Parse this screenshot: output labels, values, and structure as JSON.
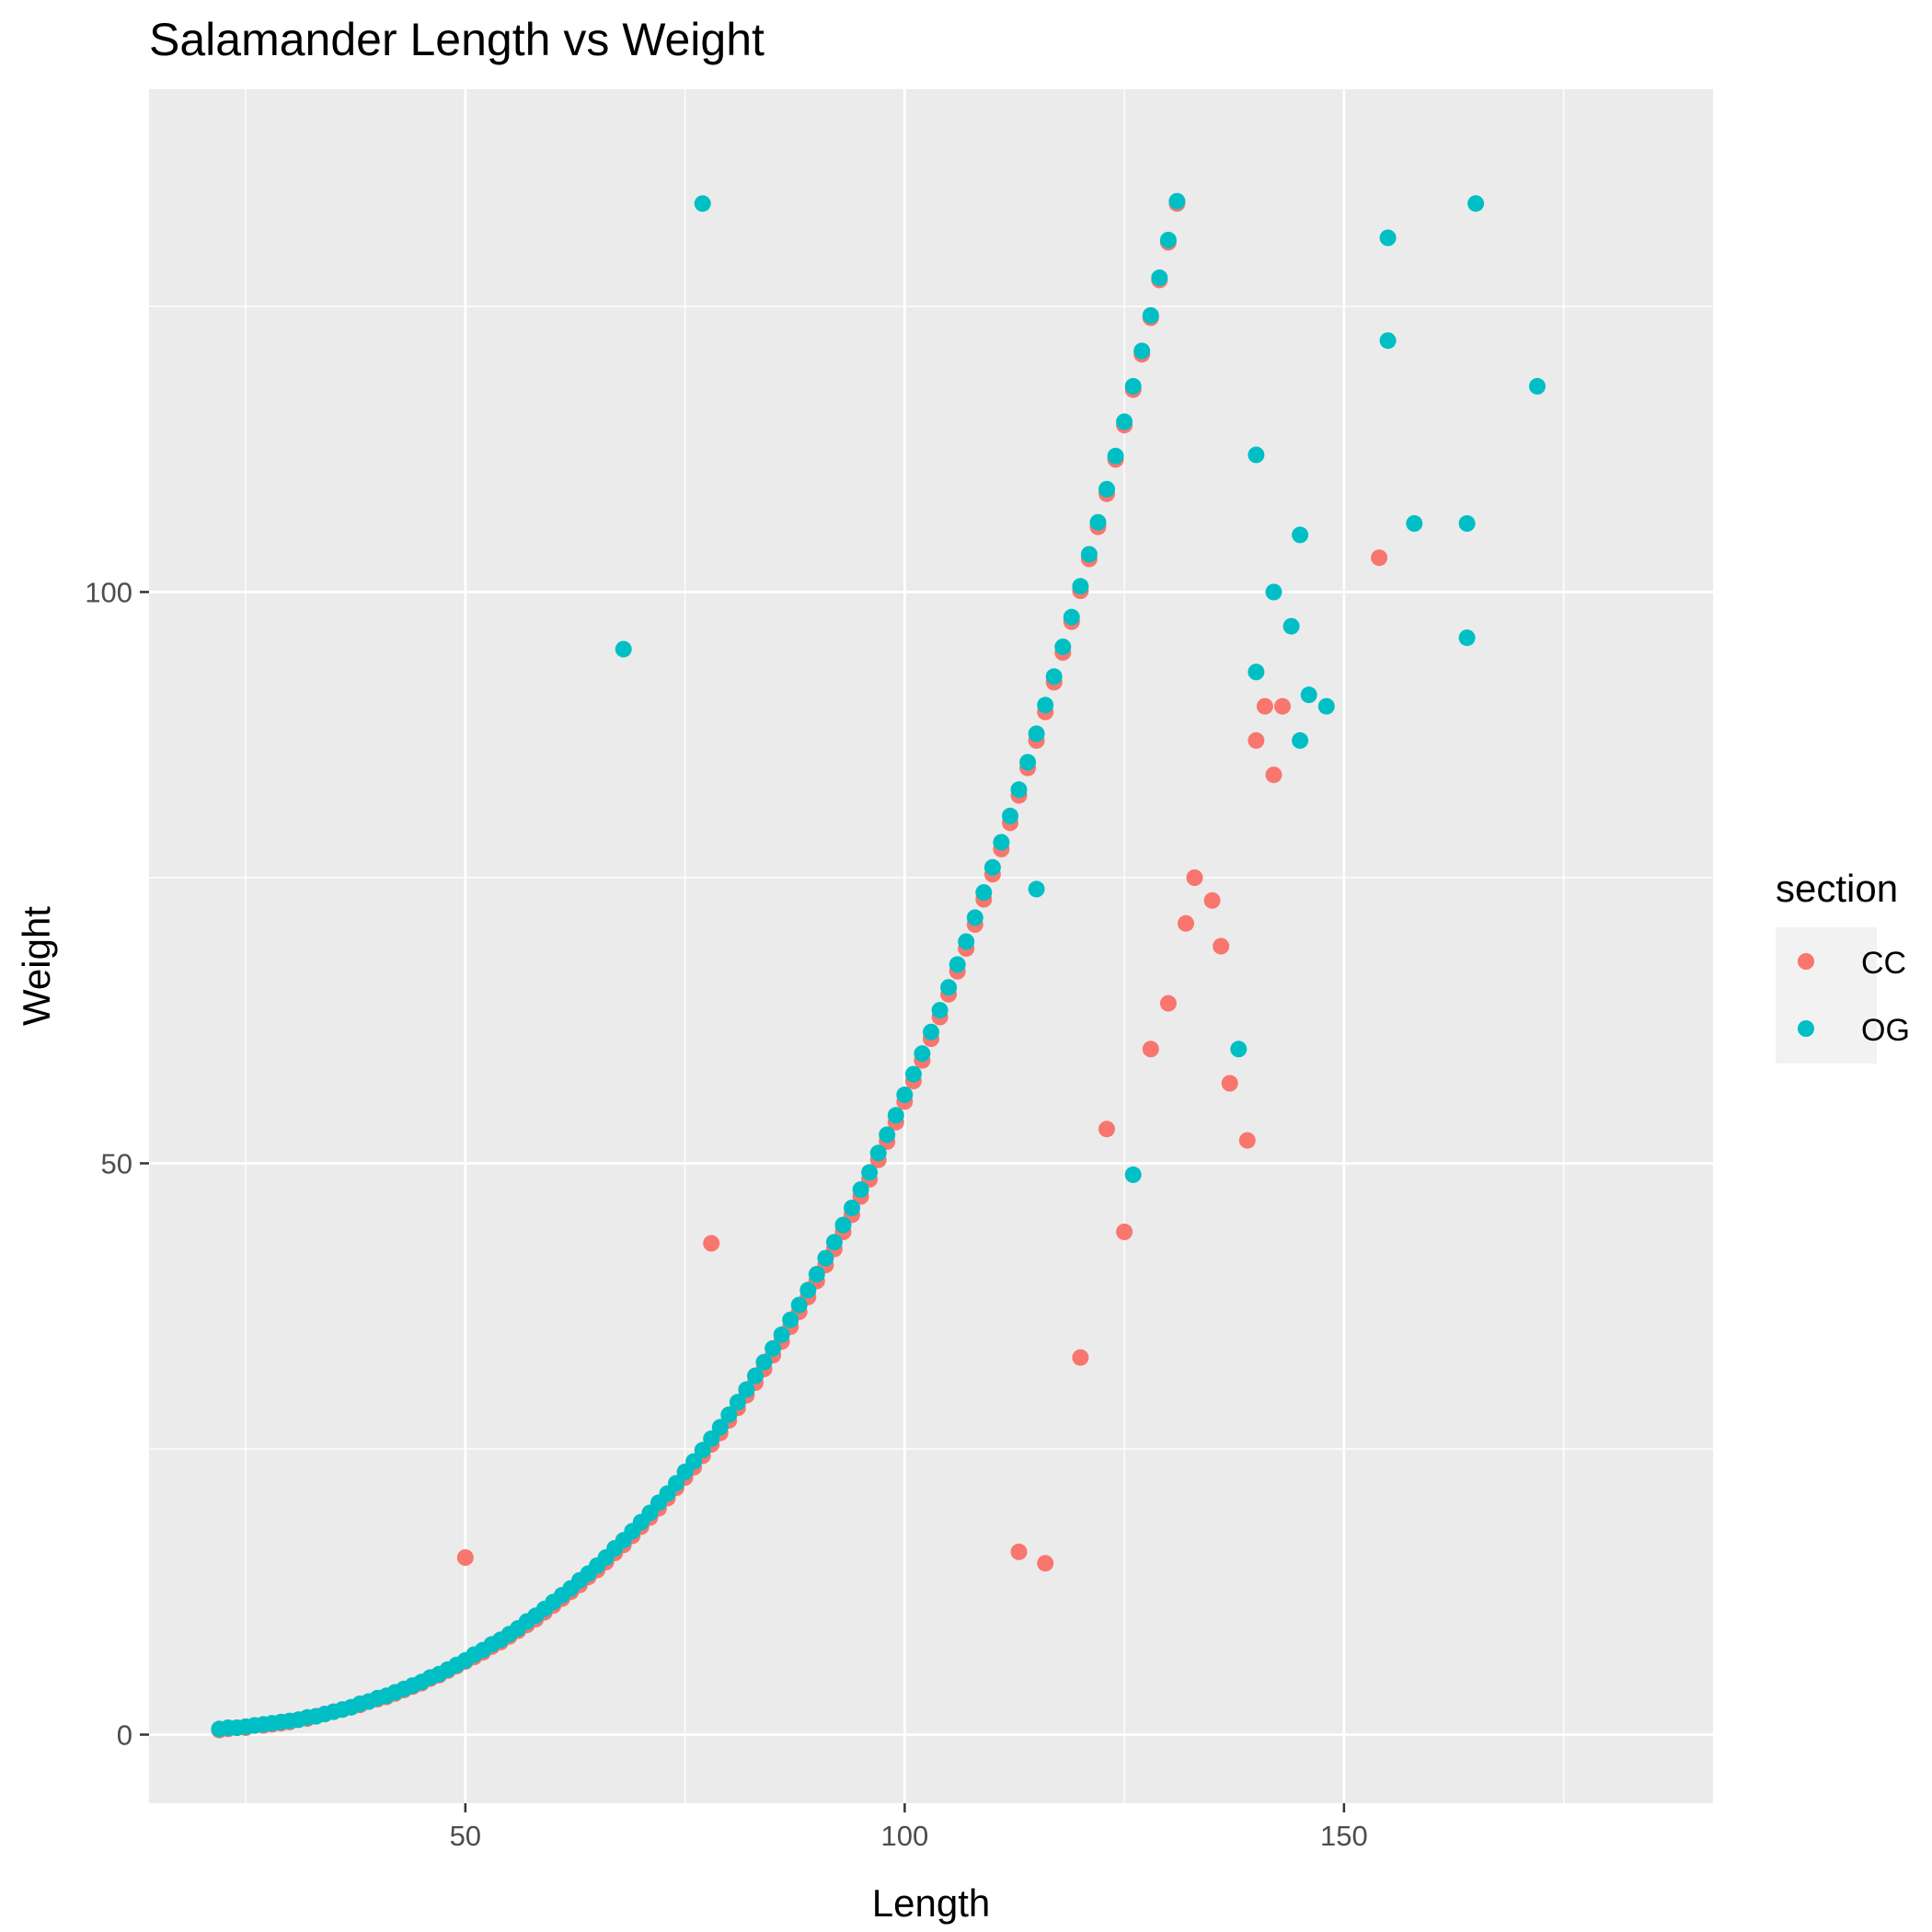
{
  "chart_data": {
    "type": "scatter",
    "title": "Salamander Length vs Weight",
    "xlabel": "Length",
    "ylabel": "Weight",
    "xlim": [
      14,
      192
    ],
    "ylim": [
      -6,
      144
    ],
    "x_ticks": [
      50,
      100,
      150
    ],
    "x_tick_labels": [
      "50",
      "100",
      "150"
    ],
    "y_ticks": [
      0,
      50,
      100
    ],
    "y_tick_labels": [
      "0",
      "50",
      "100"
    ],
    "grid": true,
    "legend": {
      "title": "section",
      "position": "right"
    },
    "series": [
      {
        "name": "CC",
        "color": "#F8766D",
        "points": [
          [
            22,
            0.4
          ],
          [
            23,
            0.5
          ],
          [
            24,
            0.6
          ],
          [
            25,
            0.6
          ],
          [
            26,
            0.8
          ],
          [
            27,
            0.8
          ],
          [
            28,
            0.9
          ],
          [
            29,
            1.0
          ],
          [
            30,
            1.1
          ],
          [
            31,
            1.3
          ],
          [
            32,
            1.4
          ],
          [
            33,
            1.6
          ],
          [
            34,
            1.8
          ],
          [
            35,
            2.0
          ],
          [
            36,
            2.2
          ],
          [
            37,
            2.4
          ],
          [
            38,
            2.6
          ],
          [
            39,
            2.9
          ],
          [
            40,
            3.1
          ],
          [
            41,
            3.3
          ],
          [
            42,
            3.6
          ],
          [
            43,
            3.9
          ],
          [
            44,
            4.2
          ],
          [
            45,
            4.5
          ],
          [
            46,
            4.9
          ],
          [
            47,
            5.2
          ],
          [
            48,
            5.6
          ],
          [
            49,
            6.0
          ],
          [
            50,
            6.4
          ],
          [
            51,
            6.8
          ],
          [
            52,
            7.2
          ],
          [
            53,
            7.7
          ],
          [
            54,
            8.1
          ],
          [
            55,
            8.6
          ],
          [
            56,
            9.1
          ],
          [
            57,
            9.6
          ],
          [
            58,
            10.1
          ],
          [
            59,
            10.7
          ],
          [
            60,
            11.3
          ],
          [
            61,
            11.9
          ],
          [
            62,
            12.5
          ],
          [
            63,
            13.1
          ],
          [
            64,
            13.8
          ],
          [
            65,
            14.4
          ],
          [
            66,
            15.1
          ],
          [
            67,
            15.9
          ],
          [
            68,
            16.6
          ],
          [
            69,
            17.4
          ],
          [
            70,
            18.2
          ],
          [
            71,
            19.0
          ],
          [
            72,
            19.8
          ],
          [
            73,
            20.7
          ],
          [
            74,
            21.6
          ],
          [
            75,
            22.5
          ],
          [
            76,
            23.4
          ],
          [
            77,
            24.4
          ],
          [
            78,
            25.4
          ],
          [
            79,
            26.4
          ],
          [
            80,
            27.5
          ],
          [
            81,
            28.6
          ],
          [
            82,
            29.7
          ],
          [
            83,
            30.8
          ],
          [
            84,
            32.0
          ],
          [
            85,
            33.2
          ],
          [
            86,
            34.4
          ],
          [
            87,
            35.7
          ],
          [
            88,
            37.0
          ],
          [
            89,
            38.3
          ],
          [
            90,
            39.7
          ],
          [
            91,
            41.1
          ],
          [
            92,
            42.5
          ],
          [
            93,
            44.0
          ],
          [
            94,
            45.5
          ],
          [
            95,
            47.1
          ],
          [
            96,
            48.6
          ],
          [
            97,
            50.3
          ],
          [
            98,
            51.9
          ],
          [
            99,
            53.6
          ],
          [
            100,
            55.4
          ],
          [
            101,
            57.2
          ],
          [
            102,
            59.0
          ],
          [
            103,
            60.9
          ],
          [
            104,
            62.8
          ],
          [
            105,
            64.8
          ],
          [
            106,
            66.8
          ],
          [
            107,
            68.8
          ],
          [
            108,
            70.9
          ],
          [
            109,
            73.1
          ],
          [
            110,
            75.3
          ],
          [
            111,
            77.5
          ],
          [
            112,
            79.8
          ],
          [
            113,
            82.2
          ],
          [
            114,
            84.6
          ],
          [
            115,
            87.0
          ],
          [
            116,
            89.5
          ],
          [
            117,
            92.1
          ],
          [
            118,
            94.7
          ],
          [
            119,
            97.4
          ],
          [
            120,
            100.1
          ],
          [
            121,
            102.9
          ],
          [
            122,
            105.7
          ],
          [
            123,
            108.6
          ],
          [
            124,
            111.6
          ],
          [
            125,
            114.6
          ],
          [
            126,
            117.7
          ],
          [
            127,
            120.8
          ],
          [
            128,
            124.0
          ],
          [
            129,
            127.3
          ],
          [
            130,
            130.6
          ],
          [
            131,
            134.0
          ],
          [
            50,
            15.5
          ],
          [
            78,
            43
          ],
          [
            113,
            16
          ],
          [
            116,
            15
          ],
          [
            123,
            53
          ],
          [
            125,
            44
          ],
          [
            120,
            33
          ],
          [
            141,
            90
          ],
          [
            143,
            90
          ],
          [
            154,
            103
          ],
          [
            140,
            87
          ],
          [
            142,
            84
          ],
          [
            139,
            52
          ],
          [
            137,
            57
          ],
          [
            135,
            73
          ],
          [
            133,
            75
          ],
          [
            136,
            69
          ],
          [
            132,
            71
          ],
          [
            130,
            64
          ],
          [
            128,
            60
          ]
        ]
      },
      {
        "name": "OG",
        "color": "#00BFC4",
        "points": [
          [
            22,
            0.5
          ],
          [
            23,
            0.6
          ],
          [
            24,
            0.6
          ],
          [
            25,
            0.7
          ],
          [
            26,
            0.8
          ],
          [
            27,
            0.9
          ],
          [
            28,
            1.0
          ],
          [
            29,
            1.1
          ],
          [
            30,
            1.2
          ],
          [
            31,
            1.3
          ],
          [
            32,
            1.5
          ],
          [
            33,
            1.6
          ],
          [
            34,
            1.8
          ],
          [
            35,
            2.0
          ],
          [
            36,
            2.2
          ],
          [
            37,
            2.4
          ],
          [
            38,
            2.7
          ],
          [
            39,
            2.9
          ],
          [
            40,
            3.2
          ],
          [
            41,
            3.4
          ],
          [
            42,
            3.7
          ],
          [
            43,
            4.0
          ],
          [
            44,
            4.3
          ],
          [
            45,
            4.6
          ],
          [
            46,
            5.0
          ],
          [
            47,
            5.3
          ],
          [
            48,
            5.7
          ],
          [
            49,
            6.1
          ],
          [
            50,
            6.5
          ],
          [
            51,
            7.0
          ],
          [
            52,
            7.4
          ],
          [
            53,
            7.9
          ],
          [
            54,
            8.3
          ],
          [
            55,
            8.8
          ],
          [
            56,
            9.3
          ],
          [
            57,
            9.9
          ],
          [
            58,
            10.4
          ],
          [
            59,
            11.0
          ],
          [
            60,
            11.6
          ],
          [
            61,
            12.2
          ],
          [
            62,
            12.8
          ],
          [
            63,
            13.5
          ],
          [
            64,
            14.1
          ],
          [
            65,
            14.8
          ],
          [
            66,
            15.5
          ],
          [
            67,
            16.3
          ],
          [
            68,
            17.0
          ],
          [
            69,
            17.8
          ],
          [
            70,
            18.6
          ],
          [
            71,
            19.4
          ],
          [
            72,
            20.3
          ],
          [
            73,
            21.1
          ],
          [
            74,
            22.0
          ],
          [
            75,
            23.0
          ],
          [
            76,
            23.9
          ],
          [
            77,
            24.9
          ],
          [
            78,
            25.9
          ],
          [
            79,
            26.9
          ],
          [
            80,
            28.0
          ],
          [
            81,
            29.1
          ],
          [
            82,
            30.2
          ],
          [
            83,
            31.4
          ],
          [
            84,
            32.6
          ],
          [
            85,
            33.8
          ],
          [
            86,
            35.0
          ],
          [
            87,
            36.3
          ],
          [
            88,
            37.6
          ],
          [
            89,
            38.9
          ],
          [
            90,
            40.3
          ],
          [
            91,
            41.7
          ],
          [
            92,
            43.1
          ],
          [
            93,
            44.6
          ],
          [
            94,
            46.1
          ],
          [
            95,
            47.7
          ],
          [
            96,
            49.2
          ],
          [
            97,
            50.9
          ],
          [
            98,
            52.5
          ],
          [
            99,
            54.2
          ],
          [
            100,
            56.0
          ],
          [
            101,
            57.8
          ],
          [
            102,
            59.6
          ],
          [
            103,
            61.5
          ],
          [
            104,
            63.4
          ],
          [
            105,
            65.4
          ],
          [
            106,
            67.4
          ],
          [
            107,
            69.4
          ],
          [
            108,
            71.5
          ],
          [
            109,
            73.7
          ],
          [
            110,
            75.9
          ],
          [
            111,
            78.1
          ],
          [
            112,
            80.4
          ],
          [
            113,
            82.7
          ],
          [
            114,
            85.1
          ],
          [
            115,
            87.6
          ],
          [
            116,
            90.1
          ],
          [
            117,
            92.6
          ],
          [
            118,
            95.2
          ],
          [
            119,
            97.8
          ],
          [
            120,
            100.5
          ],
          [
            121,
            103.3
          ],
          [
            122,
            106.1
          ],
          [
            123,
            109.0
          ],
          [
            124,
            111.9
          ],
          [
            125,
            114.9
          ],
          [
            126,
            118.0
          ],
          [
            127,
            121.1
          ],
          [
            128,
            124.2
          ],
          [
            129,
            127.5
          ],
          [
            130,
            130.8
          ],
          [
            131,
            134.2
          ],
          [
            77,
            134
          ],
          [
            68,
            95
          ],
          [
            115,
            74
          ],
          [
            126,
            49
          ],
          [
            140,
            112
          ],
          [
            145,
            105
          ],
          [
            142,
            100
          ],
          [
            144,
            97
          ],
          [
            140,
            93
          ],
          [
            146,
            91
          ],
          [
            148,
            90
          ],
          [
            145,
            87
          ],
          [
            155,
            131
          ],
          [
            165,
            134
          ],
          [
            155,
            122
          ],
          [
            172,
            118
          ],
          [
            158,
            106
          ],
          [
            164,
            106
          ],
          [
            164,
            96
          ],
          [
            138,
            60
          ]
        ]
      }
    ]
  }
}
